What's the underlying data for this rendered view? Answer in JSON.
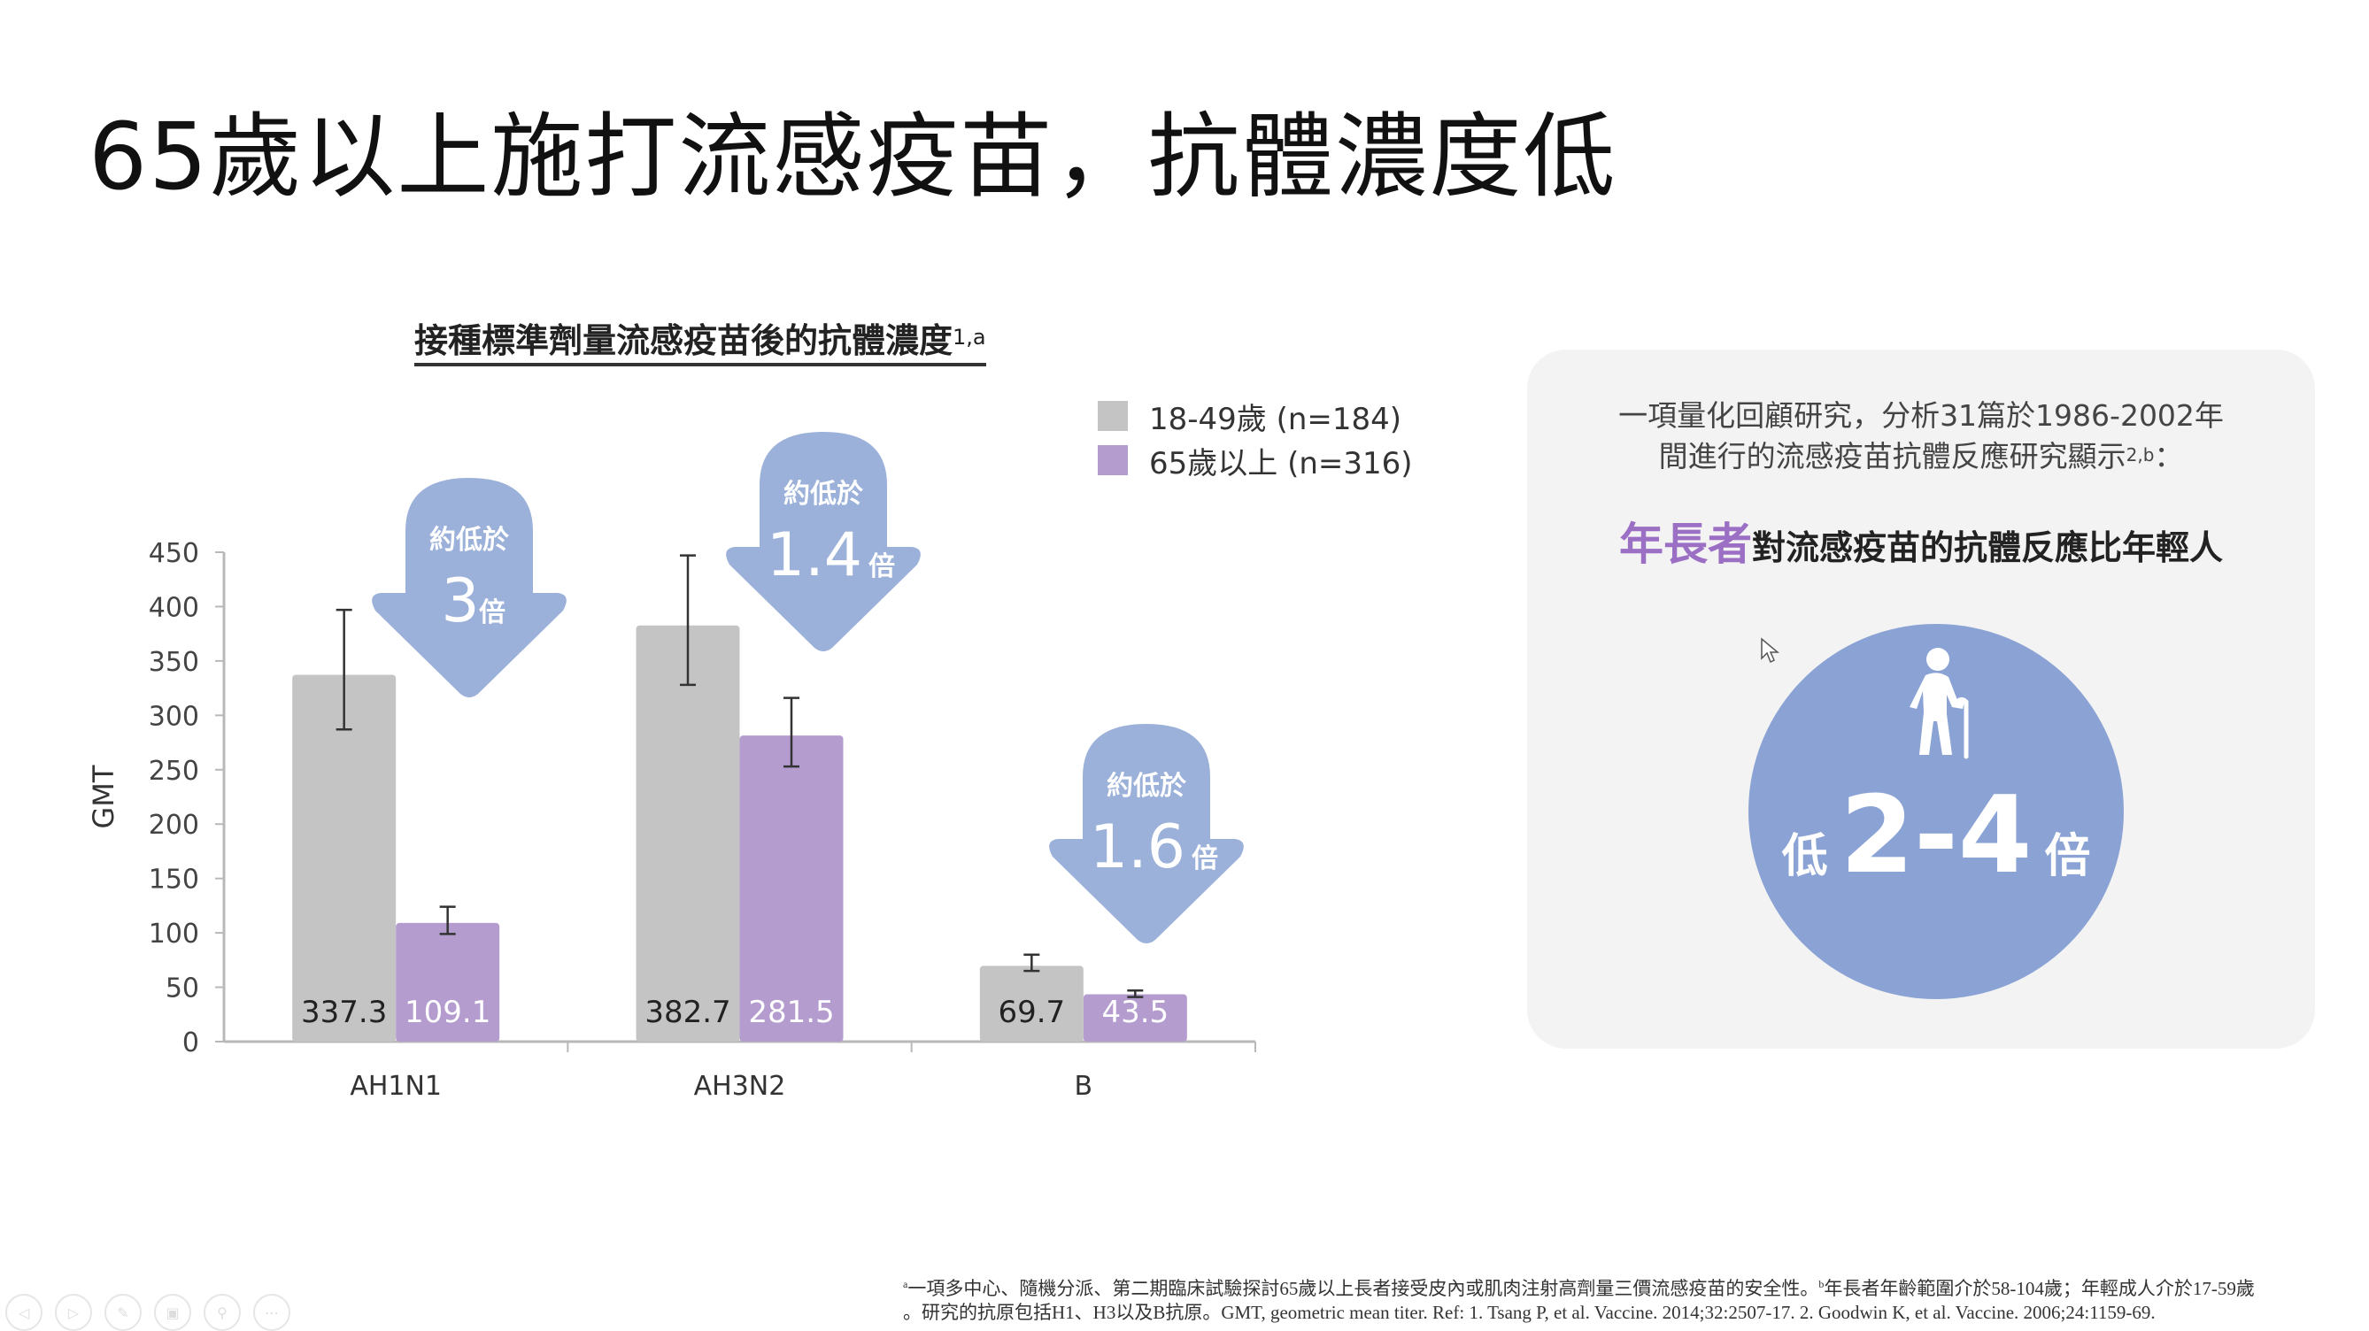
{
  "slide": {
    "title": "65歲以上施打流感疫苗，抗體濃度低"
  },
  "chart_data": {
    "type": "bar",
    "title": "接種標準劑量流感疫苗後的抗體濃度",
    "title_superscript": "1,a",
    "xlabel": "",
    "ylabel": "GMT",
    "ylim": [
      0,
      450
    ],
    "yticks": [
      0,
      50,
      100,
      150,
      200,
      250,
      300,
      350,
      400,
      450
    ],
    "ytick_labels": [
      "0",
      "50",
      "100",
      "150",
      "200",
      "250",
      "300",
      "350",
      "400",
      "450"
    ],
    "categories": [
      "AH1N1",
      "AH3N2",
      "B"
    ],
    "grid": false,
    "legend_position": "top-right",
    "series": [
      {
        "name": "18-49歲 (n=184)",
        "color": "#c4c4c4",
        "values": [
          337.3,
          382.7,
          69.7
        ],
        "labels": [
          "337.3",
          "382.7",
          "69.7"
        ],
        "error_low": [
          287,
          328,
          65
        ],
        "error_high": [
          397,
          447,
          80
        ]
      },
      {
        "name": "65歲以上 (n=316)",
        "color": "#b49ccf",
        "values": [
          109.1,
          281.5,
          43.5
        ],
        "labels": [
          "109.1",
          "281.5",
          "43.5"
        ],
        "error_low": [
          99,
          253,
          41
        ],
        "error_high": [
          124,
          316,
          47
        ]
      }
    ],
    "annotations": [
      {
        "category": "AH1N1",
        "prefix": "約低於",
        "value": "3",
        "unit": "倍"
      },
      {
        "category": "AH3N2",
        "prefix": "約低於",
        "value": "1.4",
        "unit": "倍"
      },
      {
        "category": "B",
        "prefix": "約低於",
        "value": "1.6",
        "unit": "倍"
      }
    ]
  },
  "panel": {
    "text_line1": "一項量化回顧研究，分析31篇於1986-2002年",
    "text_line2": "間進行的流感疫苗抗體反應研究顯示",
    "text_line2_sup": "2,b",
    "text_line2_end": "：",
    "headline_highlight": "年長者",
    "headline_rest": "對流感疫苗的抗體反應比年輕人",
    "circle_prefix": "低",
    "circle_value": "2-4",
    "circle_suffix": "倍",
    "icon": "elderly-person-with-cane-icon"
  },
  "footnote": {
    "line1_marker": "a",
    "line1": "一項多中心、隨機分派、第二期臨床試驗探討65歲以上長者接受皮內或肌肉注射高劑量三價流感疫苗的安全性。",
    "line1_marker2": "b",
    "line1_b": "年長者年齡範圍介於58-104歲；年輕成人介於17-59歲",
    "line2": "。研究的抗原包括H1、H3以及B抗原。GMT, geometric mean titer. Ref: 1. Tsang P, et al. Vaccine. 2014;32:2507-17. 2. Goodwin K, et al. Vaccine. 2006;24:1159-69."
  },
  "colors": {
    "arrow": "#9bb1da",
    "circle": "#8aa3d4",
    "highlight": "#9b6fc4",
    "panel_bg": "#f3f3f3"
  }
}
